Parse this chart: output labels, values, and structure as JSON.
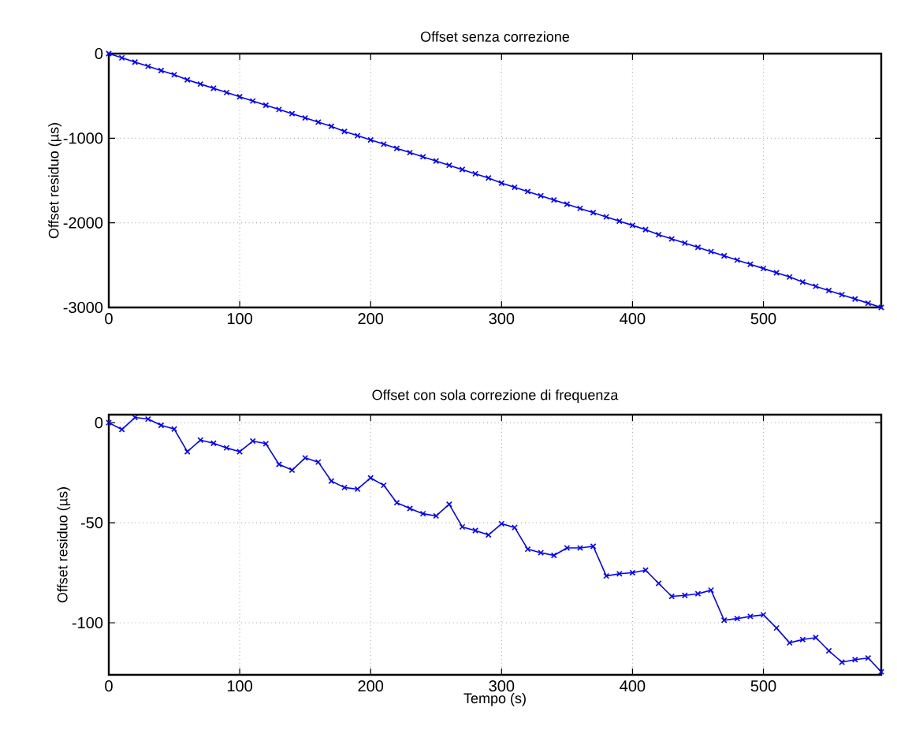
{
  "chart_data": [
    {
      "type": "line",
      "title": "Offset senza correzione",
      "ylabel": "Offset residuo (µs)",
      "color": "#0000ff",
      "marker": "cross",
      "line_style": "solid",
      "grid": true,
      "x": [
        0,
        10,
        20,
        30,
        40,
        50,
        60,
        70,
        80,
        90,
        100,
        110,
        120,
        130,
        140,
        150,
        160,
        170,
        180,
        190,
        200,
        210,
        220,
        230,
        240,
        250,
        260,
        270,
        280,
        290,
        300,
        310,
        320,
        330,
        340,
        350,
        360,
        370,
        380,
        390,
        400,
        410,
        420,
        430,
        440,
        450,
        460,
        470,
        480,
        490,
        500,
        510,
        520,
        530,
        540,
        550,
        560,
        570,
        580,
        590
      ],
      "values": [
        0,
        -50,
        -100,
        -150,
        -200,
        -250,
        -310,
        -360,
        -410,
        -460,
        -510,
        -560,
        -610,
        -660,
        -710,
        -760,
        -810,
        -860,
        -920,
        -970,
        -1020,
        -1070,
        -1120,
        -1170,
        -1220,
        -1270,
        -1320,
        -1370,
        -1420,
        -1470,
        -1530,
        -1580,
        -1630,
        -1680,
        -1730,
        -1780,
        -1830,
        -1880,
        -1930,
        -1980,
        -2030,
        -2080,
        -2140,
        -2190,
        -2240,
        -2290,
        -2340,
        -2390,
        -2440,
        -2490,
        -2540,
        -2590,
        -2640,
        -2700,
        -2750,
        -2800,
        -2850,
        -2900,
        -2950,
        -3000
      ],
      "xlim": [
        0,
        590
      ],
      "ylim": [
        -3000,
        0
      ],
      "xticks": [
        0,
        100,
        200,
        300,
        400,
        500
      ],
      "yticks": [
        -3000,
        -2000,
        -1000,
        0
      ]
    },
    {
      "type": "line",
      "title": "Offset con sola correzione di frequenza",
      "xlabel": "Tempo (s)",
      "ylabel": "Offset residuo (µs)",
      "color": "#0000ff",
      "marker": "cross",
      "line_style": "solid",
      "grid": true,
      "x": [
        0,
        10,
        20,
        30,
        40,
        50,
        60,
        70,
        80,
        90,
        100,
        110,
        120,
        130,
        140,
        150,
        160,
        170,
        180,
        190,
        200,
        210,
        220,
        230,
        240,
        250,
        260,
        270,
        280,
        290,
        300,
        310,
        320,
        330,
        340,
        350,
        360,
        370,
        380,
        390,
        400,
        410,
        420,
        430,
        440,
        450,
        460,
        470,
        480,
        490,
        500,
        510,
        520,
        530,
        540,
        550,
        560,
        570,
        580,
        590
      ],
      "values": [
        0,
        -3.4,
        2.6,
        1.8,
        -1.3,
        -3.2,
        -14.5,
        -8.7,
        -10.3,
        -12.6,
        -14.5,
        -9.2,
        -10.5,
        -20.8,
        -23.7,
        -17.6,
        -19.7,
        -29.2,
        -32.4,
        -33.2,
        -27.6,
        -31.3,
        -40,
        -42.9,
        -45.5,
        -46.6,
        -40.8,
        -52.1,
        -53.9,
        -56.1,
        -50.5,
        -52.4,
        -63.2,
        -65,
        -66.3,
        -62.6,
        -62.6,
        -61.8,
        -76.6,
        -75.5,
        -75,
        -73.7,
        -80.3,
        -86.8,
        -86.3,
        -85.5,
        -83.7,
        -98.7,
        -97.9,
        -96.8,
        -96,
        -102.6,
        -110,
        -108.4,
        -107.4,
        -114,
        -119.7,
        -118.4,
        -117.6,
        -124.5
      ],
      "xlim": [
        0,
        590
      ],
      "ylim": [
        -126,
        4
      ],
      "xticks": [
        0,
        100,
        200,
        300,
        400,
        500
      ],
      "yticks": [
        -100,
        -50,
        0
      ]
    }
  ]
}
